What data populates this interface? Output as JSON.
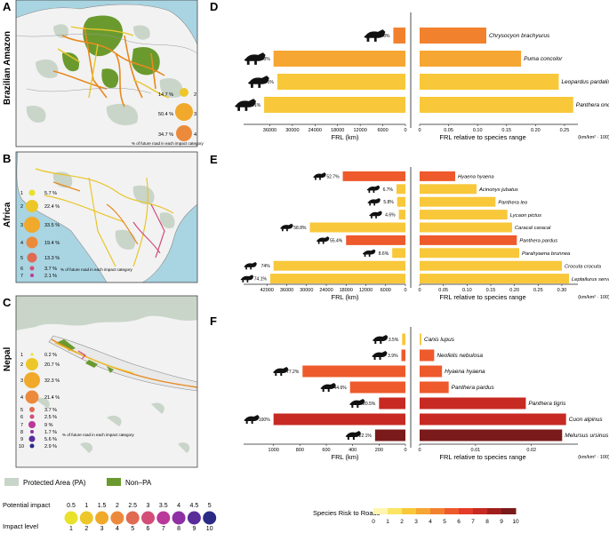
{
  "colors": {
    "ocean": "#a9d4e2",
    "land": "#f2f2f2",
    "pa": "#c9d5c9",
    "nonpa": "#6a9a2e",
    "road_yellow": "#e9c52a",
    "road_orange": "#e8891f"
  },
  "panels": {
    "A": {
      "letter": "A",
      "region": "Brazilian Amazon",
      "caption": "% of future road in each impact category",
      "legend": [
        {
          "pct": "14.7 %",
          "lvl": "2"
        },
        {
          "pct": "50.4 %",
          "lvl": "3"
        },
        {
          "pct": "34.7 %",
          "lvl": "4"
        }
      ]
    },
    "B": {
      "letter": "B",
      "region": "Africa",
      "caption": "% of future road in each impact category",
      "legend": [
        {
          "lvl": "1",
          "pct": "5.7 %"
        },
        {
          "lvl": "2",
          "pct": "22.4 %"
        },
        {
          "lvl": "3",
          "pct": "33.5 %"
        },
        {
          "lvl": "4",
          "pct": "19.4 %"
        },
        {
          "lvl": "5",
          "pct": "13.3 %"
        },
        {
          "lvl": "6",
          "pct": "3.7 %"
        },
        {
          "lvl": "7",
          "pct": "2.1 %"
        }
      ]
    },
    "C": {
      "letter": "C",
      "region": "Nepal",
      "caption": "% of future road in each impact category",
      "legend": [
        {
          "lvl": "1",
          "pct": "0.2 %"
        },
        {
          "lvl": "2",
          "pct": "20.7 %"
        },
        {
          "lvl": "3",
          "pct": "32.3 %"
        },
        {
          "lvl": "4",
          "pct": "21.4 %"
        },
        {
          "lvl": "5",
          "pct": "3.7 %"
        },
        {
          "lvl": "6",
          "pct": "2.5 %"
        },
        {
          "lvl": "7",
          "pct": "9 %"
        },
        {
          "lvl": "8",
          "pct": "1.7 %"
        },
        {
          "lvl": "9",
          "pct": "5.6 %"
        },
        {
          "lvl": "10",
          "pct": "2.9 %"
        }
      ]
    }
  },
  "map_legend": {
    "pa": "Protected Area (PA)",
    "nonpa": "Non–PA"
  },
  "impact_scale": {
    "row1_label": "Potential impact",
    "row2_label": "Impact level",
    "potential": [
      "0.5",
      "1",
      "1.5",
      "2",
      "2.5",
      "3",
      "3.5",
      "4",
      "4.5",
      "5"
    ],
    "levels": [
      "1",
      "2",
      "3",
      "4",
      "5",
      "6",
      "7",
      "8",
      "9",
      "10"
    ],
    "colors": [
      "#e8e22a",
      "#edc72a",
      "#f0a92a",
      "#ec8a3c",
      "#e06a52",
      "#d24e78",
      "#b9389a",
      "#8f2fa6",
      "#5a2c9a",
      "#2b2b86"
    ]
  },
  "risk_scale": {
    "title": "Species Risk to Roads",
    "ticks": [
      "0",
      "1",
      "2",
      "3",
      "4",
      "5",
      "6",
      "7",
      "8",
      "9",
      "10"
    ],
    "colors": [
      "#fff5b0",
      "#fbe564",
      "#f8c83a",
      "#f6a632",
      "#f2812e",
      "#ee5a2c",
      "#e53b2a",
      "#c72a22",
      "#a01f1c",
      "#7a1a1a"
    ]
  },
  "chart_data": [
    {
      "type": "bar",
      "panel": "D",
      "title": "Brazilian Amazon",
      "xlabel_left": "FRL (km)",
      "xlabel_right": "FRL relative to species range",
      "unit": "(km/km² · 100)",
      "left_ticks": [
        "36000",
        "30000",
        "24000",
        "18000",
        "12000",
        "6000",
        "0"
      ],
      "right_ticks": [
        "0",
        "0.05",
        "0.10",
        "0.15",
        "0.20",
        "0.25"
      ],
      "xlim_left": [
        0,
        42000
      ],
      "xlim_right": [
        0,
        0.27
      ],
      "species": [
        "Chrysocyon brachyurus",
        "Puma concolor",
        "Leopardus pardalis",
        "Panthera onca"
      ],
      "pct_labels": [
        "13.8%",
        "99.8%",
        "99.1%",
        "72.1%"
      ],
      "frl_km": [
        3200,
        35000,
        34000,
        37500
      ],
      "frl_relative": [
        0.115,
        0.175,
        0.24,
        0.265
      ],
      "risk": [
        5,
        4,
        3,
        3
      ]
    },
    {
      "type": "bar",
      "panel": "E",
      "title": "Africa",
      "xlabel_left": "FRL (km)",
      "xlabel_right": "FRL relative to species range",
      "unit": "(km/km² · 100)",
      "left_ticks": [
        "42000",
        "36000",
        "30000",
        "24000",
        "18000",
        "12000",
        "6000",
        "0"
      ],
      "right_ticks": [
        "0",
        "0.05",
        "0.10",
        "0.15",
        "0.20",
        "0.25",
        "0.30"
      ],
      "xlim_left": [
        0,
        48000
      ],
      "xlim_right": [
        0,
        0.33
      ],
      "species": [
        "Hyaena hyaena",
        "Acinonyx jubatus",
        "Panthera leo",
        "Lycaon pictus",
        "Caracal caracal",
        "Panthera pardus",
        "Parahyaena brunnea",
        "Crocuta crocuta",
        "Leptailurus serval"
      ],
      "pct_labels": [
        "52.7%",
        "6.7%",
        "5.8%",
        "4.6%",
        "58.8%",
        "55.4%",
        "8.6%",
        "74%",
        "74.1%"
      ],
      "frl_km": [
        19000,
        2700,
        2500,
        2000,
        29000,
        18000,
        4000,
        40000,
        41000
      ],
      "frl_relative": [
        0.075,
        0.12,
        0.16,
        0.185,
        0.195,
        0.205,
        0.21,
        0.3,
        0.315
      ],
      "risk": [
        6,
        3,
        3,
        3,
        3,
        6,
        3,
        3,
        3
      ]
    },
    {
      "type": "bar",
      "panel": "F",
      "title": "Nepal",
      "xlabel_left": "FRL (km)",
      "xlabel_right": "FRL relative to species range",
      "unit": "(km/km² · 100)",
      "left_ticks": [
        "1000",
        "800",
        "600",
        "400",
        "200",
        "0"
      ],
      "right_ticks": [
        "0",
        "0.01",
        "0.02"
      ],
      "xlim_left": [
        0,
        1200
      ],
      "xlim_right": [
        0,
        0.028
      ],
      "species": [
        "Canis lupus",
        "Neofelis nebulosa",
        "Hyaena hyaena",
        "Panthera pardus",
        "Panthera tigris",
        "Cuon alpinus",
        "Melursus ursinus"
      ],
      "pct_labels": [
        "3.5%",
        "3.9%",
        "77.2%",
        "44.6%",
        "20.5%",
        "100%",
        "22.1%"
      ],
      "frl_km": [
        25,
        30,
        780,
        420,
        200,
        1000,
        230
      ],
      "frl_relative": [
        0.0003,
        0.0026,
        0.004,
        0.0052,
        0.019,
        0.0262,
        0.0255
      ],
      "risk": [
        3,
        6,
        6,
        6,
        8,
        8,
        10
      ]
    }
  ]
}
